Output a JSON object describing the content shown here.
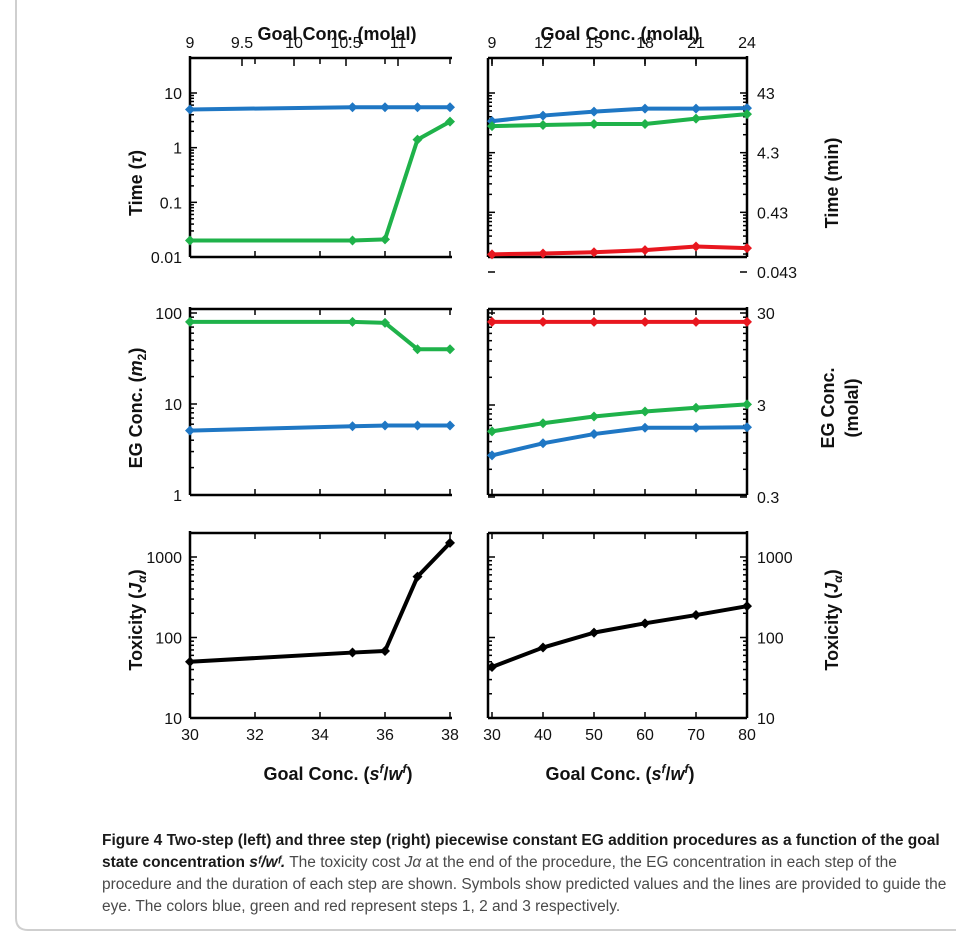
{
  "figure": {
    "top_axis_title": "Goal Conc. (molal)",
    "bottom_axis_title": "Goal Conc. (sᶠ/wᶠ)",
    "left_titles": [
      "Time (τ)",
      "EG Conc. (m₂)",
      "Toxicity (Jα)"
    ],
    "right_titles": [
      "Time (min)",
      "EG Conc.",
      "(molal)",
      "Toxicity (Jα)"
    ]
  },
  "caption": {
    "label": "Figure 4",
    "title": " Two-step (left) and three step (right) piecewise constant EG addition procedures as a function of the goal state concentration ",
    "var": "sᶠ/wᶠ.",
    "body1": " The toxicity cost ",
    "jalpha": "Jα",
    "body2": " at the end of the procedure, the EG concentration in each step of the procedure and the duration of each step are shown. Symbols show predicted values and the lines are provided to guide the eye. The colors blue, green and red represent steps 1, 2 and 3 respectively."
  },
  "colors": {
    "step1": "#1f77c4",
    "step2": "#1fb24a",
    "step3": "#e8171f",
    "toxicity": "#000000"
  },
  "chart_data": [
    {
      "type": "line",
      "title": "",
      "panel": "left-top",
      "x": [
        30,
        35,
        36,
        37,
        38
      ],
      "x_label": "Goal Conc. (sᶠ/wᶠ)",
      "x_range": [
        30,
        38
      ],
      "y_label": "Time (τ)",
      "y_scale": "log",
      "y_range": [
        0.01,
        10
      ],
      "y_ticks": [
        0.01,
        0.1,
        1,
        10
      ],
      "y_tick_labels": [
        "0.01",
        "0.1",
        "1",
        "10"
      ],
      "top_ticks": [
        "9",
        "9.5",
        "10",
        "10.5",
        "11"
      ],
      "series": [
        {
          "color_key": "step1",
          "values": [
            5,
            5.5,
            5.5,
            5.5,
            5.5
          ]
        },
        {
          "color_key": "step2",
          "values": [
            0.02,
            0.02,
            0.021,
            1.4,
            3
          ]
        }
      ]
    },
    {
      "type": "line",
      "title": "",
      "panel": "right-top",
      "x": [
        30,
        40,
        50,
        60,
        70,
        80
      ],
      "x_label": "Goal Conc. (sᶠ/wᶠ)",
      "x_range": [
        30,
        80
      ],
      "y_label": "Time (min)",
      "y_scale": "log",
      "y_range": [
        0.043,
        43
      ],
      "y_ticks": [
        0.043,
        0.43,
        4.3,
        43
      ],
      "y_tick_labels": [
        "0.043",
        "0.43",
        "4.3",
        "43"
      ],
      "top_ticks": [
        "9",
        "12",
        "15",
        "18",
        "21",
        "24"
      ],
      "series": [
        {
          "color_key": "step1",
          "values": [
            14.5,
            18,
            21,
            23.5,
            23.5,
            24
          ]
        },
        {
          "color_key": "step2",
          "values": [
            12,
            12.5,
            13,
            13,
            16,
            19
          ]
        },
        {
          "color_key": "step3",
          "values": [
            0.085,
            0.088,
            0.092,
            0.1,
            0.115,
            0.108
          ]
        }
      ]
    },
    {
      "type": "line",
      "title": "",
      "panel": "left-middle",
      "x": [
        30,
        35,
        36,
        37,
        38
      ],
      "x_range": [
        30,
        38
      ],
      "y_label": "EG Conc. (m₂)",
      "y_scale": "log",
      "y_range": [
        1,
        100
      ],
      "y_ticks": [
        1,
        10,
        100
      ],
      "y_tick_labels": [
        "1",
        "10",
        "100"
      ],
      "series": [
        {
          "color_key": "step1",
          "values": [
            5.1,
            5.7,
            5.8,
            5.8,
            5.8
          ]
        },
        {
          "color_key": "step2",
          "values": [
            80,
            80,
            78,
            40,
            40
          ]
        }
      ]
    },
    {
      "type": "line",
      "title": "",
      "panel": "right-middle",
      "x": [
        30,
        40,
        50,
        60,
        70,
        80
      ],
      "x_range": [
        30,
        80
      ],
      "y_label": "EG Conc. (molal)",
      "y_scale": "log",
      "y_range": [
        0.3,
        30
      ],
      "y_ticks": [
        0.3,
        3,
        30
      ],
      "y_tick_labels": [
        "0.3",
        "3",
        "30"
      ],
      "series": [
        {
          "color_key": "step1",
          "values": [
            0.85,
            1.15,
            1.45,
            1.7,
            1.7,
            1.72
          ]
        },
        {
          "color_key": "step2",
          "values": [
            1.55,
            1.9,
            2.25,
            2.55,
            2.8,
            3.05
          ]
        },
        {
          "color_key": "step3",
          "values": [
            24,
            24,
            24,
            24,
            24,
            24
          ]
        }
      ]
    },
    {
      "type": "line",
      "title": "",
      "panel": "left-bottom",
      "x": [
        30,
        35,
        36,
        37,
        38
      ],
      "x_range": [
        30,
        38
      ],
      "x_ticks": [
        30,
        32,
        34,
        36,
        38
      ],
      "x_tick_labels": [
        "30",
        "32",
        "34",
        "36",
        "38"
      ],
      "y_label": "Toxicity (Jα)",
      "y_scale": "log",
      "y_range": [
        10,
        2000
      ],
      "y_ticks": [
        10,
        100,
        1000
      ],
      "y_tick_labels": [
        "10",
        "100",
        "1000"
      ],
      "series": [
        {
          "color_key": "toxicity",
          "values": [
            50,
            65,
            68,
            570,
            1500
          ]
        }
      ]
    },
    {
      "type": "line",
      "title": "",
      "panel": "right-bottom",
      "x": [
        30,
        40,
        50,
        60,
        70,
        80
      ],
      "x_range": [
        30,
        80
      ],
      "x_ticks": [
        30,
        40,
        50,
        60,
        70,
        80
      ],
      "x_tick_labels": [
        "30",
        "40",
        "50",
        "60",
        "70",
        "80"
      ],
      "y_label": "Toxicity (Jα)",
      "y_scale": "log",
      "y_range": [
        10,
        2000
      ],
      "y_ticks": [
        10,
        100,
        1000
      ],
      "y_tick_labels": [
        "10",
        "100",
        "1000"
      ],
      "series": [
        {
          "color_key": "toxicity",
          "values": [
            43,
            75,
            115,
            150,
            190,
            245
          ]
        }
      ]
    }
  ]
}
